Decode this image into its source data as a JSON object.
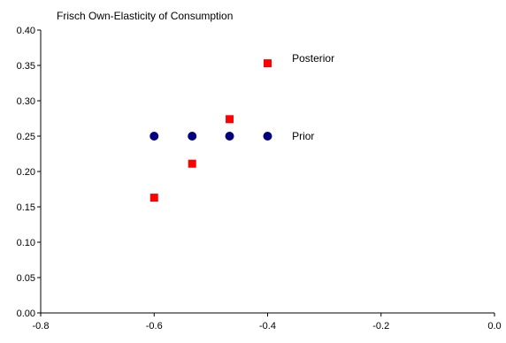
{
  "chart_data": {
    "type": "scatter",
    "title": "Frisch Own-Elasticity of Consumption",
    "xlabel": "",
    "ylabel": "",
    "xlim": [
      -0.8,
      0.0
    ],
    "ylim": [
      0.0,
      0.4
    ],
    "x_ticks": [
      "-0.8",
      "-0.6",
      "-0.4",
      "-0.2",
      "0.0"
    ],
    "y_ticks": [
      "0.00",
      "0.05",
      "0.10",
      "0.15",
      "0.20",
      "0.25",
      "0.30",
      "0.35",
      "0.40"
    ],
    "grid": false,
    "legend": "none",
    "series": [
      {
        "name": "Prior",
        "marker": "circle",
        "color": "#000080",
        "x": [
          -0.6,
          -0.533,
          -0.467,
          -0.4
        ],
        "y": [
          0.25,
          0.25,
          0.25,
          0.25
        ]
      },
      {
        "name": "Posterior",
        "marker": "square",
        "color": "#ff0000",
        "x": [
          -0.6,
          -0.533,
          -0.467,
          -0.4
        ],
        "y": [
          0.163,
          0.211,
          0.274,
          0.353
        ]
      }
    ],
    "annotations": [
      {
        "text": "Posterior",
        "x": -0.357,
        "y": 0.36
      },
      {
        "text": "Prior",
        "x": -0.357,
        "y": 0.25
      }
    ]
  }
}
